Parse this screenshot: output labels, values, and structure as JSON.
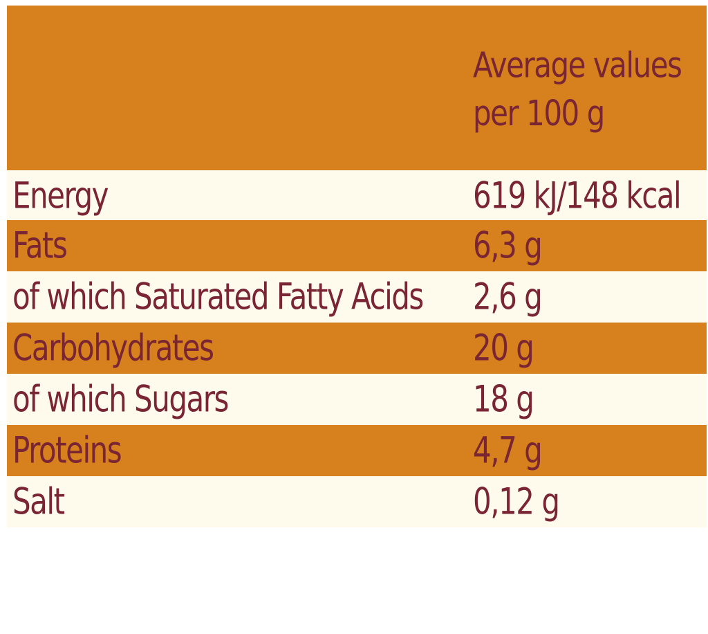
{
  "header": {
    "line1": "Average values",
    "line2": "per 100 g"
  },
  "rows": [
    {
      "label": "Energy",
      "value": "619 kJ/148 kcal"
    },
    {
      "label": "Fats",
      "value": "6,3 g"
    },
    {
      "label": "of which Saturated Fatty Acids",
      "value": "2,6 g"
    },
    {
      "label": "Carbohydrates",
      "value": "20 g"
    },
    {
      "label": "of which Sugars",
      "value": "18 g"
    },
    {
      "label": "Proteins",
      "value": "4,7 g"
    },
    {
      "label": "Salt",
      "value": "0,12 g"
    }
  ],
  "colors": {
    "band": "#d6801e",
    "cream": "#fefbec",
    "text": "#7a2533"
  }
}
